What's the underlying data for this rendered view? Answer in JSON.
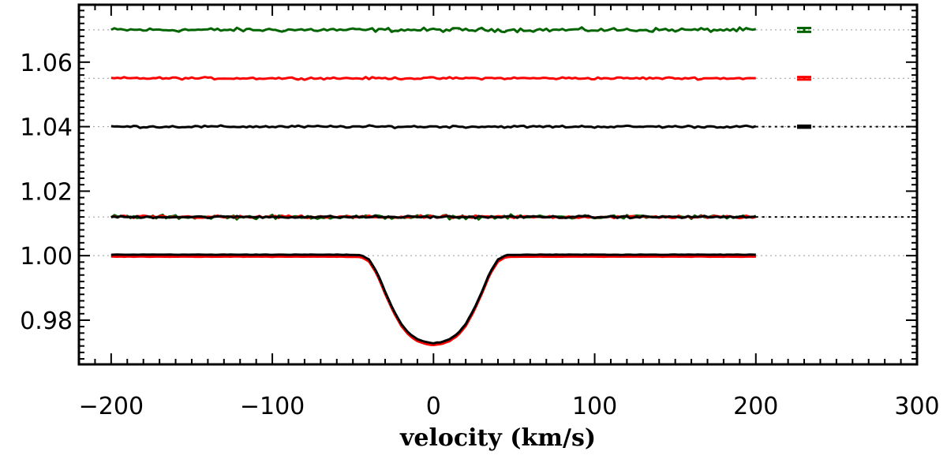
{
  "chart_data": {
    "type": "line",
    "title": "",
    "xlabel": "velocity (km/s)",
    "ylabel": "",
    "xlim": [
      -220,
      300
    ],
    "ylim": [
      0.9663,
      1.0778
    ],
    "x_ticks": [
      -200,
      -100,
      0,
      100,
      200,
      300
    ],
    "x_tick_labels": [
      "−200",
      "−100",
      "0",
      "100",
      "200",
      "300"
    ],
    "y_ticks": [
      0.98,
      1.0,
      1.02,
      1.04,
      1.06
    ],
    "y_tick_labels": [
      "0.98",
      "1.00",
      "1.02",
      "1.04",
      "1.06"
    ],
    "reference_levels": [
      1.0,
      1.012,
      1.04,
      1.055,
      1.07
    ],
    "profile": {
      "description": "mean line profiles (continuum 1.000, depth to 0.9725 at v=0)",
      "x": [
        -200,
        -60,
        -45,
        -40,
        -35,
        -30,
        -25,
        -20,
        -15,
        -10,
        -5,
        0,
        5,
        10,
        15,
        20,
        25,
        30,
        35,
        40,
        45,
        60,
        200
      ],
      "y": [
        1.0,
        1.0,
        0.9999,
        0.9985,
        0.9945,
        0.9885,
        0.983,
        0.9785,
        0.9755,
        0.9738,
        0.9729,
        0.9726,
        0.9729,
        0.9738,
        0.9755,
        0.9785,
        0.983,
        0.9885,
        0.9945,
        0.9985,
        0.9999,
        1.0,
        1.0
      ]
    },
    "series": [
      {
        "name": "green",
        "color": "#006400",
        "profile_offset": -0.0002,
        "null_level": 1.012,
        "null_noise": 0.0009,
        "offset_level": 1.07,
        "offset_noise": 0.0009,
        "error_bar": 0.0006
      },
      {
        "name": "red",
        "color": "#ff0000",
        "profile_offset": -0.0003,
        "null_level": 1.012,
        "null_noise": 0.0006,
        "offset_level": 1.055,
        "offset_noise": 0.0005,
        "error_bar": 0.0004
      },
      {
        "name": "black",
        "color": "#000000",
        "profile_offset": 0.0003,
        "null_level": 1.012,
        "null_noise": 0.0005,
        "offset_level": 1.04,
        "offset_noise": 0.0005,
        "error_bar": 0.0003
      }
    ],
    "error_bar_x": 230,
    "curve_x_range": [
      -200,
      200
    ],
    "grid": false,
    "legend": "none"
  }
}
